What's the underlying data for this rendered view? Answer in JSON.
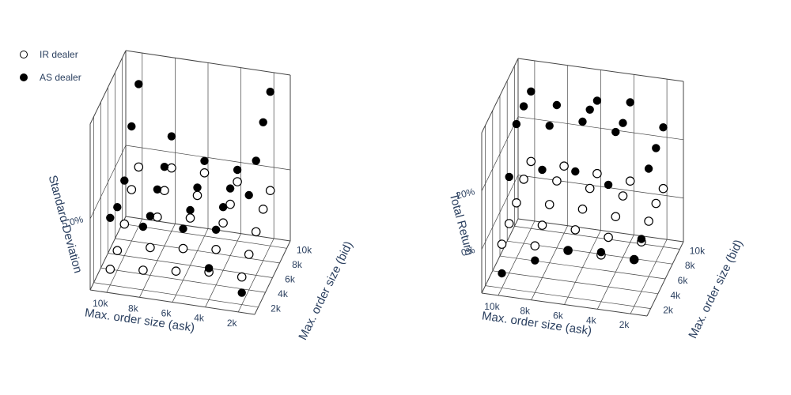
{
  "legend": {
    "series": [
      {
        "name": "IR dealer",
        "marker": "open"
      },
      {
        "name": "AS dealer",
        "marker": "filled"
      }
    ]
  },
  "colors": {
    "text": "#2a3f5f",
    "grid": "#444444",
    "marker": "#000000",
    "open_fill": "#ffffff"
  },
  "chart_data": [
    {
      "type": "scatter3d",
      "x_title": "Max. order size (ask)",
      "y_title": "Max. order size (bid)",
      "z_title": "Standard Deviation",
      "x_ticks": [
        {
          "v": 2000,
          "label": "2k"
        },
        {
          "v": 4000,
          "label": "4k"
        },
        {
          "v": 6000,
          "label": "6k"
        },
        {
          "v": 8000,
          "label": "8k"
        },
        {
          "v": 10000,
          "label": "10k"
        }
      ],
      "y_ticks": [
        {
          "v": 2000,
          "label": "2k"
        },
        {
          "v": 4000,
          "label": "4k"
        },
        {
          "v": 6000,
          "label": "6k"
        },
        {
          "v": 8000,
          "label": "8k"
        },
        {
          "v": 10000,
          "label": "10k"
        }
      ],
      "z_ticks": [
        {
          "v": 5.0,
          "label": "5.0%"
        }
      ],
      "xlim": [
        1000,
        11000
      ],
      "ylim": [
        1000,
        11000
      ],
      "zlim": [
        3.2,
        7.4
      ],
      "series": [
        {
          "name": "IR dealer",
          "points": [
            [
              10000,
              2000,
              3.6
            ],
            [
              10000,
              4000,
              3.7
            ],
            [
              10000,
              6000,
              4.0
            ],
            [
              10000,
              8000,
              4.5
            ],
            [
              10000,
              10000,
              4.7
            ],
            [
              8000,
              2000,
              3.7
            ],
            [
              8000,
              4000,
              3.9
            ],
            [
              8000,
              6000,
              4.3
            ],
            [
              8000,
              8000,
              4.6
            ],
            [
              8000,
              10000,
              4.8
            ],
            [
              6000,
              2000,
              3.8
            ],
            [
              6000,
              4000,
              4.0
            ],
            [
              6000,
              6000,
              4.4
            ],
            [
              6000,
              8000,
              4.6
            ],
            [
              6000,
              10000,
              4.8
            ],
            [
              4000,
              2000,
              3.9
            ],
            [
              4000,
              4000,
              4.1
            ],
            [
              4000,
              6000,
              4.4
            ],
            [
              4000,
              8000,
              4.5
            ],
            [
              4000,
              10000,
              4.7
            ],
            [
              2000,
              2000,
              3.9
            ],
            [
              2000,
              4000,
              4.1
            ],
            [
              2000,
              6000,
              4.3
            ],
            [
              2000,
              8000,
              4.5
            ],
            [
              2000,
              10000,
              4.6
            ]
          ]
        },
        {
          "name": "AS dealer",
          "points": [
            [
              10000,
              10000,
              6.8
            ],
            [
              10000,
              8000,
              6.1
            ],
            [
              10000,
              6000,
              5.1
            ],
            [
              10000,
              4000,
              4.8
            ],
            [
              10000,
              2000,
              4.9
            ],
            [
              8000,
              10000,
              5.6
            ],
            [
              8000,
              8000,
              5.2
            ],
            [
              8000,
              6000,
              5.0
            ],
            [
              8000,
              4000,
              4.7
            ],
            [
              8000,
              2000,
              4.8
            ],
            [
              6000,
              10000,
              5.1
            ],
            [
              6000,
              8000,
              4.8
            ],
            [
              6000,
              6000,
              4.6
            ],
            [
              6000,
              4000,
              4.5
            ],
            [
              4000,
              10000,
              5.0
            ],
            [
              4000,
              8000,
              4.9
            ],
            [
              4000,
              6000,
              4.8
            ],
            [
              4000,
              4000,
              4.6
            ],
            [
              4000,
              2000,
              4.0
            ],
            [
              2000,
              10000,
              7.1
            ],
            [
              2000,
              8000,
              6.7
            ],
            [
              2000,
              6000,
              6.1
            ],
            [
              2000,
              4000,
              5.6
            ],
            [
              2000,
              2000,
              3.5
            ]
          ]
        }
      ]
    },
    {
      "type": "scatter3d",
      "x_title": "Max. order size (ask)",
      "y_title": "Max. order size (bid)",
      "z_title": "Total Return",
      "x_ticks": [
        {
          "v": 2000,
          "label": "2k"
        },
        {
          "v": 4000,
          "label": "4k"
        },
        {
          "v": 6000,
          "label": "6k"
        },
        {
          "v": 8000,
          "label": "8k"
        },
        {
          "v": 10000,
          "label": "10k"
        }
      ],
      "y_ticks": [
        {
          "v": 2000,
          "label": "2k"
        },
        {
          "v": 4000,
          "label": "4k"
        },
        {
          "v": 6000,
          "label": "6k"
        },
        {
          "v": 8000,
          "label": "8k"
        },
        {
          "v": 10000,
          "label": "10k"
        }
      ],
      "z_ticks": [
        {
          "v": 0,
          "label": "0%"
        },
        {
          "v": 20,
          "label": "20%"
        }
      ],
      "xlim": [
        1000,
        11000
      ],
      "ylim": [
        1000,
        11000
      ],
      "zlim": [
        -15,
        40
      ],
      "series": [
        {
          "name": "IR dealer",
          "points": [
            [
              10000,
              2000,
              0
            ],
            [
              10000,
              4000,
              2
            ],
            [
              10000,
              6000,
              4
            ],
            [
              10000,
              8000,
              7
            ],
            [
              10000,
              10000,
              8
            ],
            [
              8000,
              2000,
              1
            ],
            [
              8000,
              4000,
              3
            ],
            [
              8000,
              6000,
              5
            ],
            [
              8000,
              8000,
              8
            ],
            [
              8000,
              10000,
              8
            ],
            [
              6000,
              2000,
              1
            ],
            [
              6000,
              4000,
              3
            ],
            [
              6000,
              6000,
              5
            ],
            [
              6000,
              8000,
              7
            ],
            [
              6000,
              10000,
              7
            ],
            [
              4000,
              2000,
              1
            ],
            [
              4000,
              4000,
              2
            ],
            [
              4000,
              6000,
              4
            ],
            [
              4000,
              8000,
              6
            ],
            [
              4000,
              10000,
              6
            ],
            [
              2000,
              2000,
              1
            ],
            [
              2000,
              4000,
              2
            ],
            [
              2000,
              6000,
              4
            ],
            [
              2000,
              8000,
              5
            ],
            [
              2000,
              10000,
              5
            ]
          ]
        },
        {
          "name": "AS dealer",
          "points": [
            [
              10000,
              2000,
              -10
            ],
            [
              10000,
              4000,
              18
            ],
            [
              10000,
              6000,
              31
            ],
            [
              10000,
              8000,
              32
            ],
            [
              10000,
              10000,
              32
            ],
            [
              8000,
              2000,
              -4
            ],
            [
              8000,
              4000,
              22
            ],
            [
              8000,
              6000,
              32
            ],
            [
              8000,
              8000,
              34
            ],
            [
              6000,
              2000,
              1
            ],
            [
              6000,
              4000,
              23
            ],
            [
              6000,
              6000,
              35
            ],
            [
              6000,
              8000,
              34
            ],
            [
              6000,
              10000,
              32
            ],
            [
              4000,
              2000,
              2
            ],
            [
              4000,
              4000,
              20
            ],
            [
              4000,
              6000,
              33
            ],
            [
              4000,
              8000,
              31
            ],
            [
              4000,
              10000,
              33
            ],
            [
              2000,
              2000,
              1
            ],
            [
              2000,
              4000,
              3
            ],
            [
              2000,
              6000,
              22
            ],
            [
              2000,
              8000,
              24
            ],
            [
              2000,
              10000,
              26
            ]
          ]
        }
      ]
    }
  ]
}
